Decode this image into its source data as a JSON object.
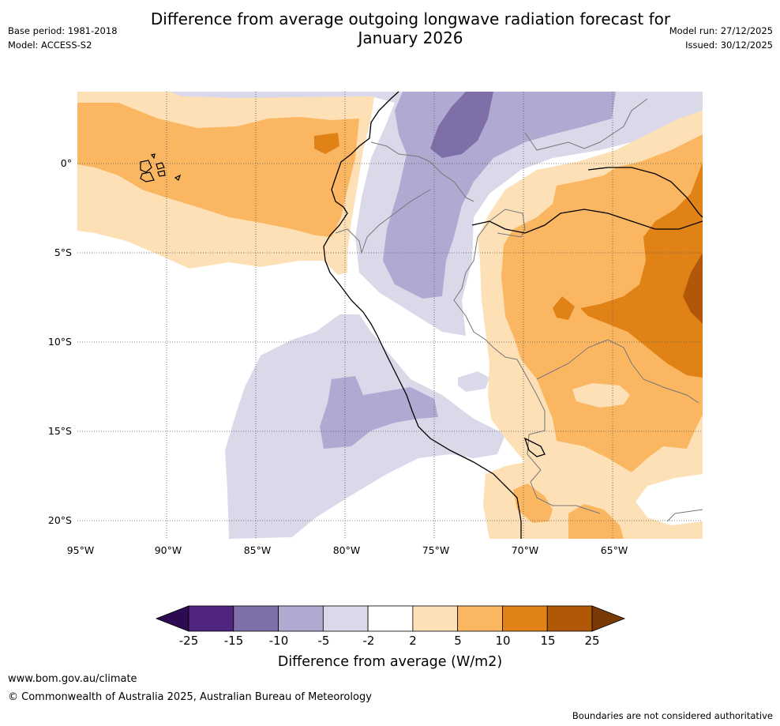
{
  "header": {
    "title_line1": "Difference from average outgoing longwave radiation forecast for",
    "title_line2": "January 2026",
    "base_period": "Base period: 1981-2018",
    "model": "Model: ACCESS-S2",
    "model_run": "Model run: 27/12/2025",
    "issued": "Issued: 30/12/2025"
  },
  "map": {
    "longitude_ticks": [
      "95°W",
      "90°W",
      "85°W",
      "80°W",
      "75°W",
      "70°W",
      "65°W"
    ],
    "latitude_ticks": [
      "0°",
      "5°S",
      "10°S",
      "15°S",
      "20°S"
    ],
    "extent": {
      "lon_min": -95,
      "lon_max": -60,
      "lat_min": -21,
      "lat_max": 4
    },
    "land_features": [
      "coastline",
      "country-boundaries",
      "galapagos-islands",
      "lake-titicaca"
    ],
    "colors": {
      "minus25_minus15": "#4f2580",
      "minus15_minus10": "#7e6fa9",
      "minus10_minus5": "#b0a9d2",
      "minus5_minus2": "#d9d9ea",
      "minus2_2": "#ffffff",
      "2_5": "#fde0b5",
      "5_10": "#fbb661",
      "10_15": "#e08216",
      "15_25": "#b15808"
    }
  },
  "colorbar": {
    "title": "Difference from average (W/m2)",
    "labels": [
      "-25",
      "-15",
      "-10",
      "-5",
      "-2",
      "2",
      "5",
      "10",
      "15",
      "25"
    ],
    "colors": [
      "#2d0b52",
      "#4f2580",
      "#7e6fa9",
      "#b0a9d2",
      "#d9d9ea",
      "#ffffff",
      "#fde0b5",
      "#fbb661",
      "#e08216",
      "#b15808",
      "#7a3a05"
    ]
  },
  "footer": {
    "website": "www.bom.gov.au/climate",
    "copyright": "© Commonwealth of Australia 2025, Australian Bureau of Meteorology",
    "note": "Boundaries are not considered authoritative"
  }
}
